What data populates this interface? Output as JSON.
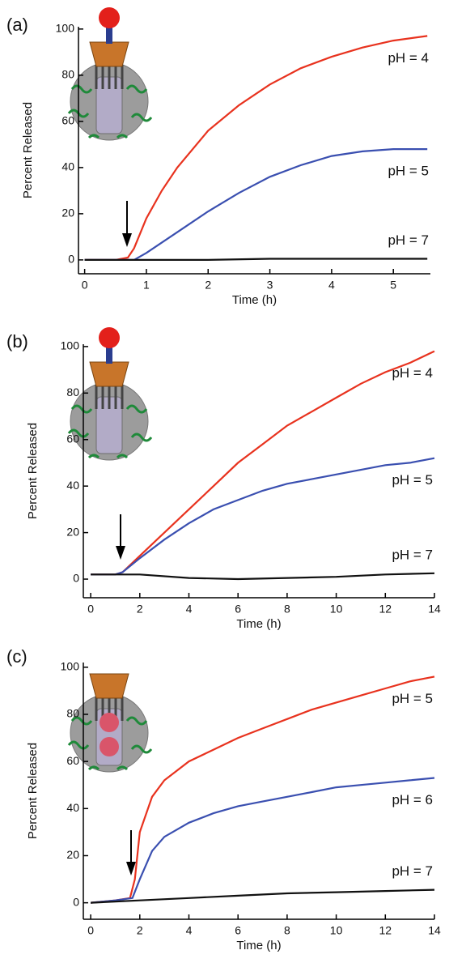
{
  "chart_data": [
    {
      "type": "line",
      "panel_label": "(a)",
      "x_label": "Time (h)",
      "y_label": "Percent Released",
      "xlim": [
        -0.1,
        5.6
      ],
      "xticks": [
        0,
        1,
        2,
        3,
        4,
        5
      ],
      "ylim": [
        -6,
        101
      ],
      "yticks": [
        0,
        20,
        40,
        60,
        80,
        100
      ],
      "series": [
        {
          "name": "pH = 4",
          "color": "#e8321e",
          "x": [
            0,
            0.5,
            0.7,
            0.8,
            1,
            1.25,
            1.5,
            2,
            2.5,
            3,
            3.5,
            4,
            4.5,
            5,
            5.55
          ],
          "values": [
            0,
            0,
            1,
            5,
            18,
            30,
            40,
            56,
            67,
            76,
            83,
            88,
            92,
            95,
            97
          ]
        },
        {
          "name": "pH = 5",
          "color": "#3a4fb0",
          "x": [
            0,
            0.5,
            0.8,
            1,
            1.5,
            2,
            2.5,
            3,
            3.5,
            4,
            4.5,
            5,
            5.55
          ],
          "values": [
            0,
            0,
            0,
            3,
            12,
            21,
            29,
            36,
            41,
            45,
            47,
            48,
            48
          ]
        },
        {
          "name": "pH = 7",
          "color": "#111111",
          "x": [
            0,
            1,
            2,
            3,
            4,
            5,
            5.55
          ],
          "values": [
            0,
            0,
            0,
            0.5,
            0.5,
            0.5,
            0.5
          ]
        }
      ]
    },
    {
      "type": "line",
      "panel_label": "(b)",
      "x_label": "Time (h)",
      "y_label": "Percent Released",
      "xlim": [
        -0.3,
        14
      ],
      "xticks": [
        0,
        2,
        4,
        6,
        8,
        10,
        12,
        14
      ],
      "ylim": [
        -8,
        101
      ],
      "yticks": [
        0,
        20,
        40,
        60,
        80,
        100
      ],
      "series": [
        {
          "name": "pH = 4",
          "color": "#e8321e",
          "x": [
            0,
            1,
            1.3,
            2,
            3,
            4,
            5,
            6,
            7,
            8,
            9,
            10,
            11,
            12,
            13,
            14
          ],
          "values": [
            2,
            2,
            3,
            10,
            20,
            30,
            40,
            50,
            58,
            66,
            72,
            78,
            84,
            89,
            93,
            98
          ]
        },
        {
          "name": "pH = 5",
          "color": "#3a4fb0",
          "x": [
            0,
            1,
            1.3,
            2,
            3,
            4,
            5,
            6,
            7,
            8,
            9,
            10,
            11,
            12,
            13,
            14
          ],
          "values": [
            2,
            2,
            3,
            9,
            17,
            24,
            30,
            34,
            38,
            41,
            43,
            45,
            47,
            49,
            50,
            52
          ]
        },
        {
          "name": "pH = 7",
          "color": "#111111",
          "x": [
            0,
            2,
            4,
            6,
            8,
            10,
            12,
            14
          ],
          "values": [
            2,
            2,
            0.5,
            0,
            0.5,
            1,
            2,
            2.5
          ]
        }
      ]
    },
    {
      "type": "line",
      "panel_label": "(c)",
      "x_label": "Time (h)",
      "y_label": "Percent Released",
      "xlim": [
        -0.3,
        14
      ],
      "xticks": [
        0,
        2,
        4,
        6,
        8,
        10,
        12,
        14
      ],
      "ylim": [
        -7,
        102
      ],
      "yticks": [
        0,
        20,
        40,
        60,
        80,
        100
      ],
      "series": [
        {
          "name": "pH = 5",
          "color": "#e8321e",
          "x": [
            0,
            1,
            1.6,
            1.8,
            2,
            2.5,
            3,
            4,
            5,
            6,
            7,
            8,
            9,
            10,
            11,
            12,
            13,
            14
          ],
          "values": [
            0,
            1,
            2,
            10,
            30,
            45,
            52,
            60,
            65,
            70,
            74,
            78,
            82,
            85,
            88,
            91,
            94,
            96
          ]
        },
        {
          "name": "pH = 6",
          "color": "#3a4fb0",
          "x": [
            0,
            1,
            1.7,
            2,
            2.5,
            3,
            4,
            5,
            6,
            7,
            8,
            9,
            10,
            11,
            12,
            13,
            14
          ],
          "values": [
            0,
            1,
            2,
            10,
            22,
            28,
            34,
            38,
            41,
            43,
            45,
            47,
            49,
            50,
            51,
            52,
            53
          ]
        },
        {
          "name": "pH = 7",
          "color": "#111111",
          "x": [
            0,
            2,
            4,
            6,
            8,
            10,
            12,
            14
          ],
          "values": [
            0,
            1,
            2,
            3,
            4,
            4.5,
            5,
            5.5
          ]
        }
      ]
    }
  ]
}
